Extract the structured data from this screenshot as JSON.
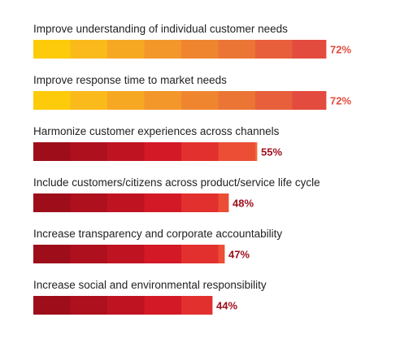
{
  "chart_data": {
    "type": "bar",
    "orientation": "horizontal",
    "categories": [
      "Improve understanding of individual customer needs",
      "Improve response time to market needs",
      "Harmonize customer experiences across channels",
      "Include customers/citizens across product/service life cycle",
      "Increase transparency and corporate accountability",
      "Increase social and environmental responsibility"
    ],
    "values": [
      72,
      72,
      55,
      48,
      47,
      44
    ],
    "value_labels": [
      "72%",
      "72%",
      "55%",
      "48%",
      "47%",
      "44%"
    ],
    "value_unit": "%",
    "xlim": [
      0,
      100
    ],
    "grid": false,
    "legend": "none",
    "palettes": {
      "warm": [
        "#FDCB0A",
        "#FBBA1B",
        "#F7A823",
        "#F3972A",
        "#EF862F",
        "#EB7534",
        "#E85F3B",
        "#E44B3F"
      ],
      "red": [
        "#9D0E1A",
        "#AE101E",
        "#C01322",
        "#D31926",
        "#E2302E",
        "#EB4E35",
        "#F06A3A"
      ]
    },
    "label_colors": {
      "warm": "#E44B3F",
      "red": "#9D0E1A"
    },
    "bar_palette": [
      "warm",
      "warm",
      "red",
      "red",
      "red",
      "red"
    ]
  }
}
